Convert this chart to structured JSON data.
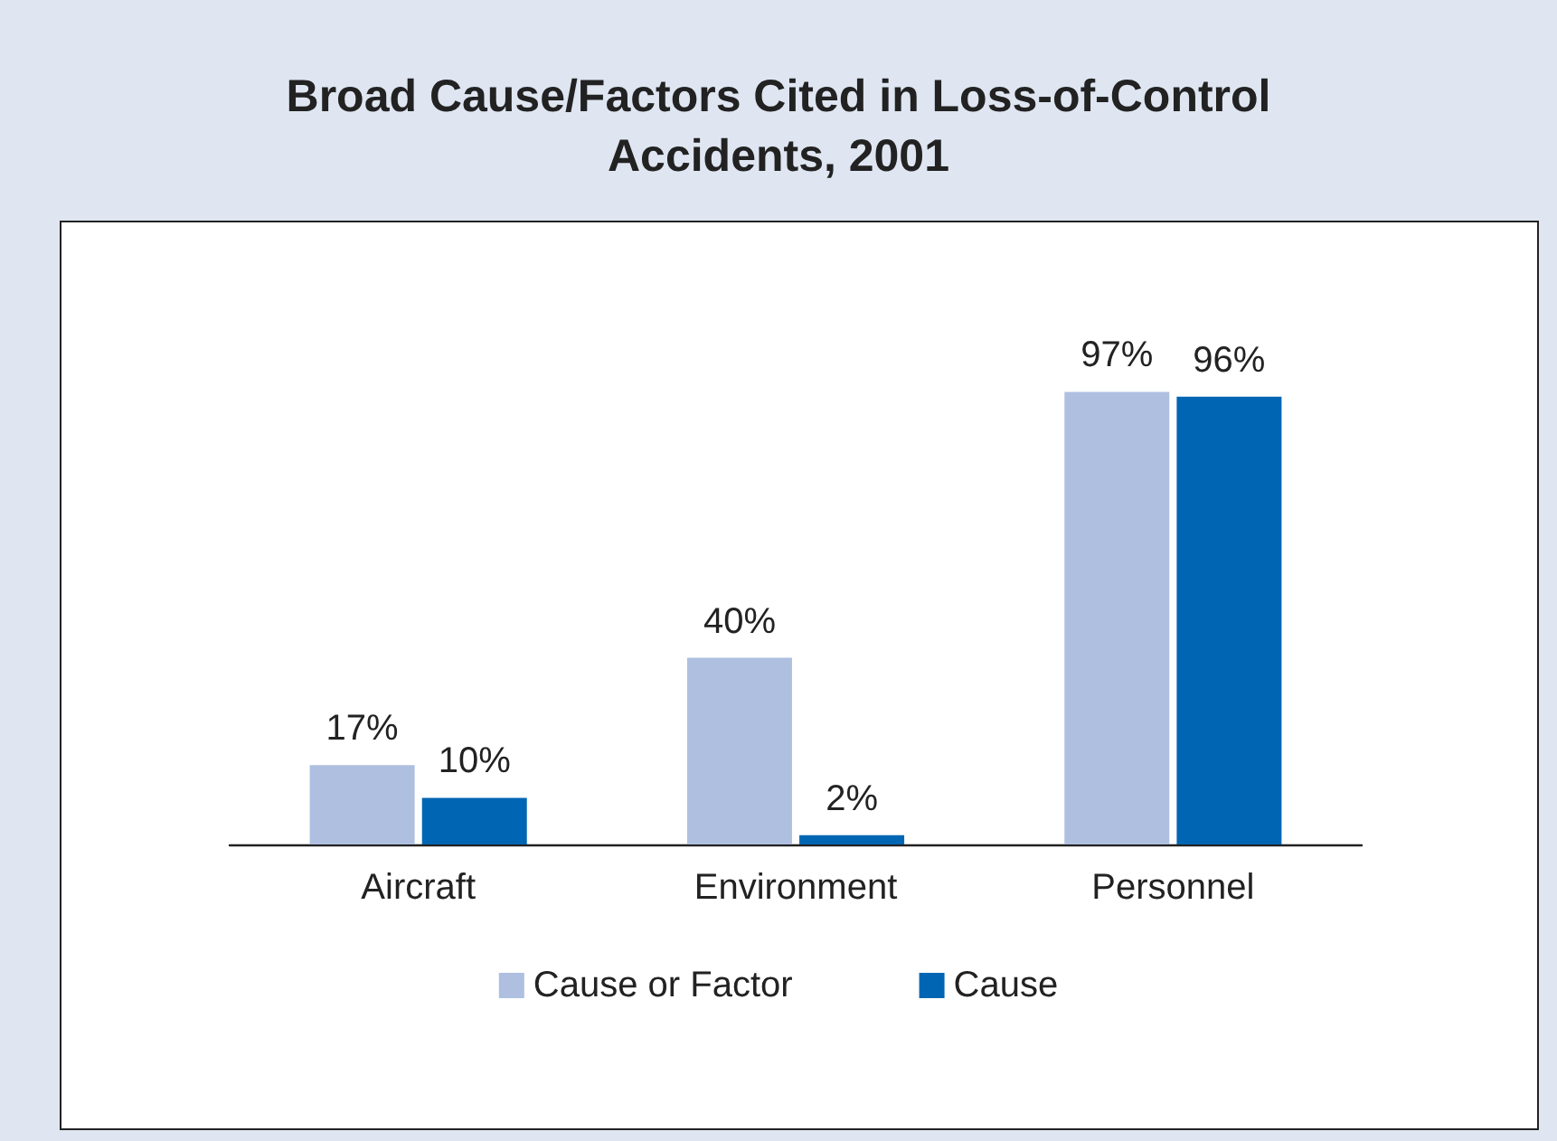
{
  "chart_data": {
    "type": "bar",
    "title": "Broad Cause/Factors Cited in Loss-of-Control\nAccidents, 2001",
    "categories": [
      "Aircraft",
      "Environment",
      "Personnel"
    ],
    "series": [
      {
        "name": "Cause or Factor",
        "color": "#aebfe0",
        "values": [
          17,
          40,
          97
        ],
        "value_labels": [
          "17%",
          "40%",
          "97%"
        ]
      },
      {
        "name": "Cause",
        "color": "#0066b3",
        "values": [
          10,
          2,
          96
        ],
        "value_labels": [
          "10%",
          "2%",
          "96%"
        ]
      }
    ],
    "legend": "bottom"
  }
}
